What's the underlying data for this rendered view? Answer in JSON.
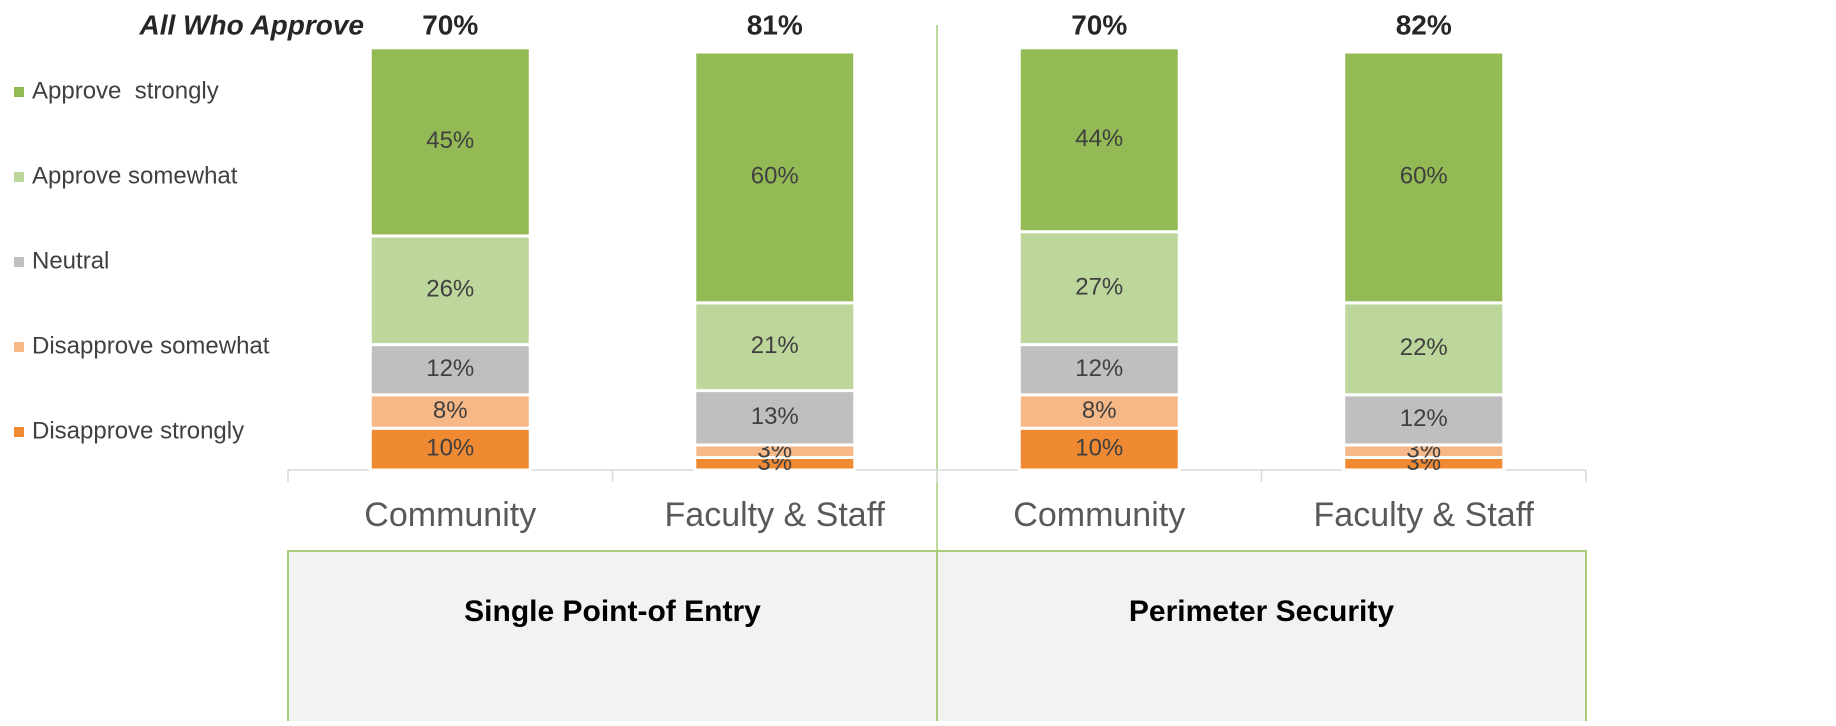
{
  "chart_data": {
    "type": "stacked-bar",
    "categories": [
      "Community",
      "Faculty & Staff",
      "Community",
      "Faculty & Staff"
    ],
    "groups": [
      {
        "name": "Single Point-of Entry",
        "span": 2
      },
      {
        "name": "Perimeter Security",
        "span": 2
      }
    ],
    "series": [
      {
        "name": "Disapprove strongly",
        "color": "#f08a32",
        "values": [
          10,
          3,
          10,
          3
        ],
        "value_labels": [
          "10%",
          "3%",
          "10%",
          "3%"
        ]
      },
      {
        "name": "Disapprove somewhat",
        "color": "#f6b887",
        "values": [
          8,
          3,
          8,
          3
        ],
        "value_labels": [
          "8%",
          "3%",
          "8%",
          "3%"
        ]
      },
      {
        "name": "Neutral",
        "color": "#bfbfbf",
        "values": [
          12,
          13,
          12,
          12
        ],
        "value_labels": [
          "12%",
          "13%",
          "12%",
          "12%"
        ]
      },
      {
        "name": "Approve somewhat",
        "color": "#bdd69b",
        "values": [
          26,
          21,
          27,
          22
        ],
        "value_labels": [
          "26%",
          "21%",
          "27%",
          "22%"
        ]
      },
      {
        "name": "Approve  strongly",
        "color": "#93ba55",
        "values": [
          45,
          60,
          44,
          60
        ],
        "value_labels": [
          "45%",
          "60%",
          "44%",
          "60%"
        ]
      }
    ],
    "totals": {
      "name": "All Who Approve",
      "values": [
        70,
        81,
        70,
        82
      ],
      "value_labels": [
        "70%",
        "81%",
        "70%",
        "82%"
      ]
    }
  }
}
